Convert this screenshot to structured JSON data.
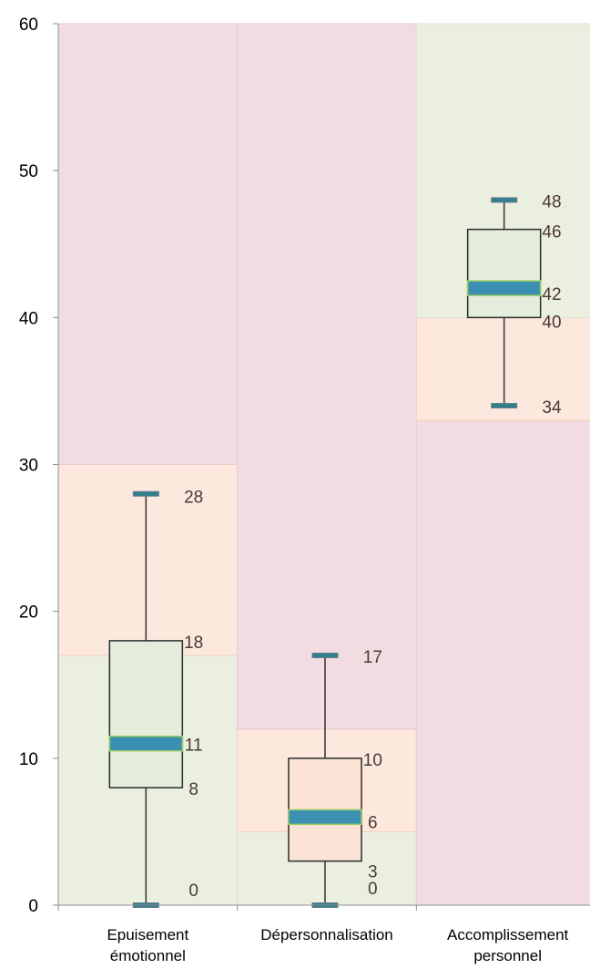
{
  "chart_data": {
    "type": "box",
    "title": "",
    "xlabel": "",
    "ylabel": "",
    "ylim": [
      0,
      60
    ],
    "yticks": [
      0,
      10,
      20,
      30,
      40,
      50,
      60
    ],
    "grid": false,
    "colors": {
      "high_zone": "#f1dde1",
      "moderate_zone": "#fce8dc",
      "low_zone": "#ebefdf",
      "box_fill_low": "#e4eddb",
      "box_fill_moderate": "#fbe4d6",
      "median_bar": "#3a8fb3",
      "median_border": "#9acd62",
      "whisker": "#333333",
      "cap": "#2f7f8f"
    },
    "categories": [
      {
        "label": "Epuisement\némotionnel",
        "min": 0,
        "q1": 8,
        "median": 11,
        "q3": 18,
        "max": 28,
        "zones": [
          {
            "from": 0,
            "to": 17,
            "level": "low"
          },
          {
            "from": 17,
            "to": 30,
            "level": "moderate"
          },
          {
            "from": 30,
            "to": 60,
            "level": "high"
          }
        ],
        "labels": [
          "28",
          "18",
          "11",
          "8",
          "0"
        ]
      },
      {
        "label": "Dépersonnalisation",
        "min": 0,
        "q1": 3,
        "median": 6,
        "q3": 10,
        "max": 17,
        "zones": [
          {
            "from": 0,
            "to": 5,
            "level": "low"
          },
          {
            "from": 5,
            "to": 12,
            "level": "moderate"
          },
          {
            "from": 12,
            "to": 60,
            "level": "high"
          }
        ],
        "labels": [
          "17",
          "10",
          "6",
          "3",
          "0"
        ]
      },
      {
        "label": "Accomplissement\npersonnel",
        "min": 34,
        "q1": 40,
        "median": 42,
        "q3": 46,
        "max": 48,
        "zones": [
          {
            "from": 0,
            "to": 33,
            "level": "high"
          },
          {
            "from": 33,
            "to": 40,
            "level": "moderate"
          },
          {
            "from": 40,
            "to": 60,
            "level": "low"
          }
        ],
        "labels": [
          "48",
          "46",
          "42",
          "40",
          "34"
        ]
      }
    ]
  }
}
